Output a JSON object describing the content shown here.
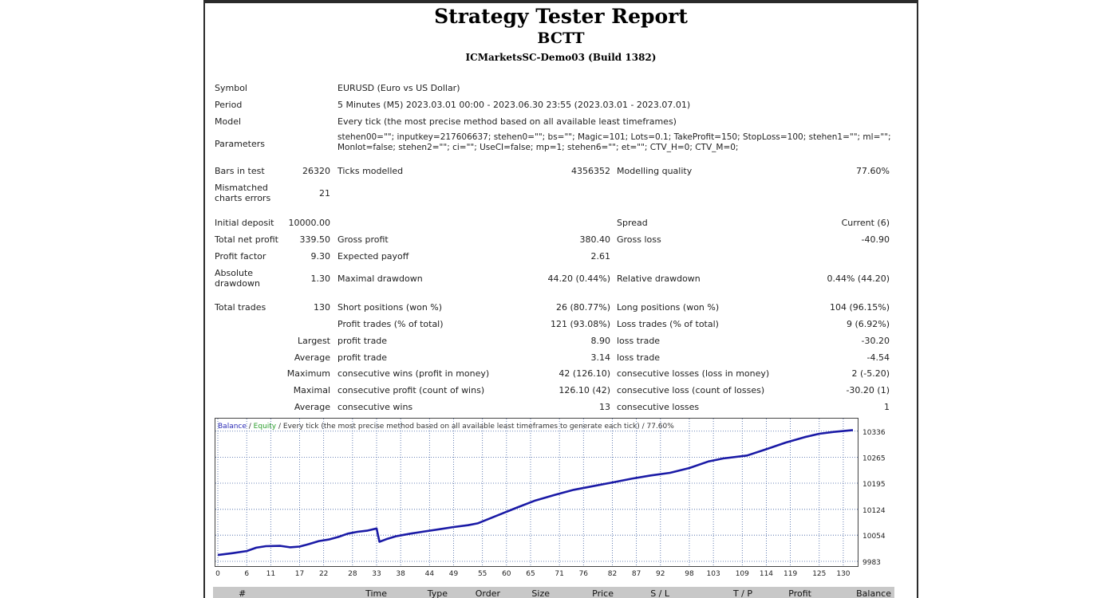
{
  "report": {
    "title": "Strategy Tester Report",
    "name": "BCTT",
    "server": "ICMarketsSC-Demo03 (Build 1382)"
  },
  "info": {
    "symbol_label": "Symbol",
    "symbol": "EURUSD (Euro vs US Dollar)",
    "period_label": "Period",
    "period": "5 Minutes (M5) 2023.03.01 00:00 - 2023.06.30 23:55 (2023.03.01 - 2023.07.01)",
    "model_label": "Model",
    "model": "Every tick (the most precise method based on all available least timeframes)",
    "parameters_label": "Parameters",
    "parameters_line1": "stehen00=\"\"; inputkey=217606637; stehen0=\"\"; bs=\"\"; Magic=101; Lots=0.1; TakeProfit=150; StopLoss=100; stehen1=\"\"; ml=\"\";",
    "parameters_line2": "Monlot=false; stehen2=\"\"; ci=\"\"; UseCI=false; mp=1; stehen6=\"\"; et=\"\"; CTV_H=0; CTV_M=0;"
  },
  "quality": {
    "bars_label": "Bars in test",
    "bars": "26320",
    "ticks_label": "Ticks modelled",
    "ticks": "4356352",
    "mq_label": "Modelling quality",
    "mq": "77.60%",
    "mismatched_label": "Mismatched charts errors",
    "mismatched": "21"
  },
  "results": {
    "deposit_label": "Initial deposit",
    "deposit": "10000.00",
    "spread_label": "Spread",
    "spread": "Current (6)",
    "net_label": "Total net profit",
    "net": "339.50",
    "gross_profit_label": "Gross profit",
    "gross_profit": "380.40",
    "gross_loss_label": "Gross loss",
    "gross_loss": "-40.90",
    "pf_label": "Profit factor",
    "pf": "9.30",
    "payoff_label": "Expected payoff",
    "payoff": "2.61",
    "abs_dd_label": "Absolute drawdown",
    "abs_dd": "1.30",
    "max_dd_label": "Maximal drawdown",
    "max_dd": "44.20 (0.44%)",
    "rel_dd_label": "Relative drawdown",
    "rel_dd": "0.44% (44.20)"
  },
  "trades": {
    "total_label": "Total trades",
    "total": "130",
    "short_label": "Short positions (won %)",
    "short": "26 (80.77%)",
    "long_label": "Long positions (won %)",
    "long": "104 (96.15%)",
    "profit_trades_label": "Profit trades (% of total)",
    "profit_trades": "121 (93.08%)",
    "loss_trades_label": "Loss trades (% of total)",
    "loss_trades": "9 (6.92%)",
    "largest_label": "Largest",
    "largest_profit_label": "profit trade",
    "largest_profit": "8.90",
    "largest_loss_label": "loss trade",
    "largest_loss": "-30.20",
    "average_label": "Average",
    "average_profit_label": "profit trade",
    "average_profit": "3.14",
    "average_loss_label": "loss trade",
    "average_loss": "-4.54",
    "maximum_label": "Maximum",
    "max_cons_wins_label": "consecutive wins (profit in money)",
    "max_cons_wins": "42 (126.10)",
    "max_cons_losses_label": "consecutive losses (loss in money)",
    "max_cons_losses": "2 (-5.20)",
    "maximal_label": "Maximal",
    "maximal_cons_profit_label": "consecutive profit (count of wins)",
    "maximal_cons_profit": "126.10 (42)",
    "maximal_cons_loss_label": "consecutive loss (count of losses)",
    "maximal_cons_loss": "-30.20 (1)",
    "avg2_label": "Average",
    "avg_cons_wins_label": "consecutive wins",
    "avg_cons_wins": "13",
    "avg_cons_losses_label": "consecutive losses",
    "avg_cons_losses": "1"
  },
  "chart_data": {
    "type": "line",
    "legend_balance": "Balance",
    "legend_sep": " / ",
    "legend_equity": "Equity",
    "legend_rest": " / Every tick (the most precise method based on all available least timeframes to generate each tick) / 77.60%",
    "colors": {
      "balance": "#1a1aa6",
      "equity": "#2ea02e",
      "grid": "#3f5fa0",
      "legend_balance": "#2a2ab5",
      "legend_equity": "#2ea02e"
    },
    "x_ticks": [
      "0",
      "6",
      "11",
      "17",
      "22",
      "28",
      "33",
      "38",
      "44",
      "49",
      "55",
      "60",
      "65",
      "71",
      "76",
      "82",
      "87",
      "92",
      "98",
      "103",
      "109",
      "114",
      "119",
      "125",
      "130"
    ],
    "y_ticks": [
      "10336",
      "10265",
      "10195",
      "10124",
      "10054",
      "9983"
    ],
    "xlim": [
      0,
      132
    ],
    "ylim": [
      9983,
      10355
    ],
    "grid": true,
    "series": [
      {
        "name": "Balance",
        "x": [
          0,
          3,
          6,
          8,
          10,
          13,
          15,
          17,
          19,
          21,
          23,
          25,
          27,
          29,
          31,
          33,
          33.6,
          35,
          37,
          40,
          43,
          46,
          49,
          52,
          54,
          58,
          62,
          66,
          70,
          74,
          78,
          82,
          86,
          90,
          94,
          98,
          102,
          105,
          110,
          114,
          118,
          122,
          125,
          128,
          132
        ],
        "y": [
          10000,
          10005,
          10011,
          10020,
          10024,
          10025,
          10021,
          10023,
          10030,
          10038,
          10042,
          10049,
          10058,
          10063,
          10066,
          10072,
          10036,
          10043,
          10051,
          10058,
          10064,
          10070,
          10076,
          10081,
          10086,
          10107,
          10128,
          10148,
          10163,
          10177,
          10187,
          10197,
          10207,
          10216,
          10223,
          10236,
          10254,
          10262,
          10270,
          10287,
          10305,
          10320,
          10329,
          10334,
          10339
        ]
      }
    ]
  },
  "trades_table": {
    "headers": [
      "#",
      "Time",
      "Type",
      "Order",
      "Size",
      "Price",
      "S / L",
      "T / P",
      "Profit",
      "Balance"
    ]
  }
}
